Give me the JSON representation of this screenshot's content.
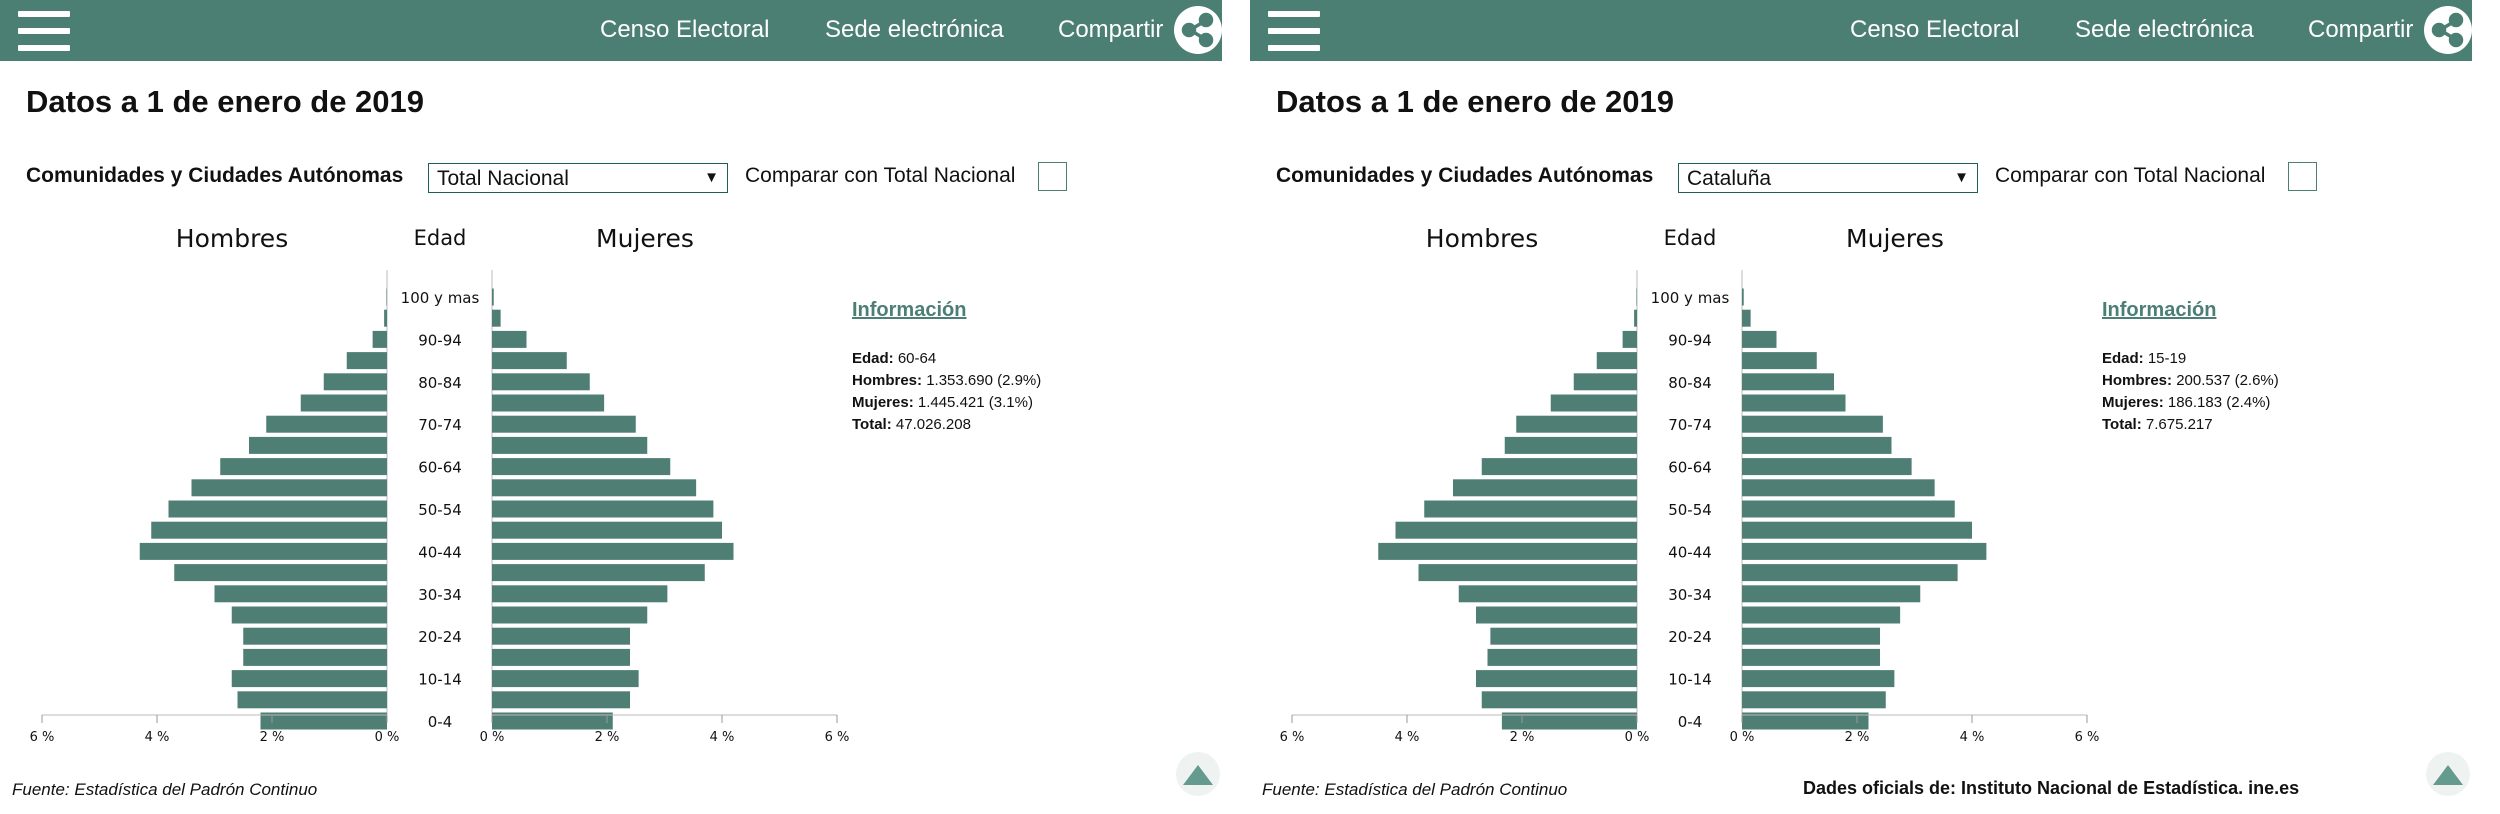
{
  "nav": {
    "censo_label": "Censo Electoral",
    "sede_label": "Sede electrónica",
    "compartir_label": "Compartir"
  },
  "colors": {
    "accent": "#4c7f74",
    "bar": "#4f7f74",
    "text": "#111111"
  },
  "icons": {
    "menu": "hamburger-icon",
    "share": "share-icon",
    "scroll_top": "up-triangle-icon"
  },
  "panels": [
    {
      "title": "Datos a 1 de enero de 2019",
      "filter_label": "Comunidades y Ciudades Autónomas",
      "selected_region": "Total Nacional",
      "compare_label": "Comparar con Total Nacional",
      "compare_checked": false,
      "info": {
        "title": "Información",
        "edad_label": "Edad:",
        "edad_value": "60-64",
        "hombres_label": "Hombres:",
        "hombres_value": "1.353.690 (2.9%)",
        "mujeres_label": "Mujeres:",
        "mujeres_value": "1.445.421 (3.1%)",
        "total_label": "Total:",
        "total_value": "47.026.208"
      },
      "source": "Fuente: Estadística del Padrón Continuo",
      "footer_official": ""
    },
    {
      "title": "Datos a 1 de enero de 2019",
      "filter_label": "Comunidades y Ciudades Autónomas",
      "selected_region": "Cataluña",
      "compare_label": "Comparar con Total Nacional",
      "compare_checked": false,
      "info": {
        "title": "Información",
        "edad_label": "Edad:",
        "edad_value": "15-19",
        "hombres_label": "Hombres:",
        "hombres_value": "200.537 (2.6%)",
        "mujeres_label": "Mujeres:",
        "mujeres_value": "186.183 (2.4%)",
        "total_label": "Total:",
        "total_value": "7.675.217"
      },
      "source": "Fuente: Estadística del Padrón Continuo",
      "footer_official": "Dades oficials de: Instituto Nacional de Estadística. ine.es"
    }
  ],
  "chart_data": [
    {
      "type": "bar",
      "orientation": "horizontal-pyramid",
      "region": "Total Nacional",
      "left_title": "Hombres",
      "center_title": "Edad",
      "right_title": "Mujeres",
      "age_groups": [
        "0-4",
        "5-9",
        "10-14",
        "15-19",
        "20-24",
        "25-29",
        "30-34",
        "35-39",
        "40-44",
        "45-49",
        "50-54",
        "55-59",
        "60-64",
        "65-69",
        "70-74",
        "75-79",
        "80-84",
        "85-89",
        "90-94",
        "95-99",
        "100 y mas"
      ],
      "age_tick_labels": [
        "0-4",
        "10-14",
        "20-24",
        "30-34",
        "40-44",
        "50-54",
        "60-64",
        "70-74",
        "80-84",
        "90-94",
        "100 y mas"
      ],
      "series": [
        {
          "name": "Hombres",
          "unit": "%",
          "values": [
            2.2,
            2.6,
            2.7,
            2.5,
            2.5,
            2.7,
            3.0,
            3.7,
            4.3,
            4.1,
            3.8,
            3.4,
            2.9,
            2.4,
            2.1,
            1.5,
            1.1,
            0.7,
            0.25,
            0.05,
            0.01
          ]
        },
        {
          "name": "Mujeres",
          "unit": "%",
          "values": [
            2.1,
            2.4,
            2.55,
            2.4,
            2.4,
            2.7,
            3.05,
            3.7,
            4.2,
            4.0,
            3.85,
            3.55,
            3.1,
            2.7,
            2.5,
            1.95,
            1.7,
            1.3,
            0.6,
            0.15,
            0.03
          ]
        }
      ],
      "x_ticks": [
        "6 %",
        "4 %",
        "2 %",
        "0 %"
      ],
      "x_ticks_right": [
        "0 %",
        "2 %",
        "4 %",
        "6 %"
      ],
      "xlim": [
        0,
        6
      ]
    },
    {
      "type": "bar",
      "orientation": "horizontal-pyramid",
      "region": "Cataluña",
      "left_title": "Hombres",
      "center_title": "Edad",
      "right_title": "Mujeres",
      "age_groups": [
        "0-4",
        "5-9",
        "10-14",
        "15-19",
        "20-24",
        "25-29",
        "30-34",
        "35-39",
        "40-44",
        "45-49",
        "50-54",
        "55-59",
        "60-64",
        "65-69",
        "70-74",
        "75-79",
        "80-84",
        "85-89",
        "90-94",
        "95-99",
        "100 y mas"
      ],
      "age_tick_labels": [
        "0-4",
        "10-14",
        "20-24",
        "30-34",
        "40-44",
        "50-54",
        "60-64",
        "70-74",
        "80-84",
        "90-94",
        "100 y mas"
      ],
      "series": [
        {
          "name": "Hombres",
          "unit": "%",
          "values": [
            2.35,
            2.7,
            2.8,
            2.6,
            2.55,
            2.8,
            3.1,
            3.8,
            4.5,
            4.2,
            3.7,
            3.2,
            2.7,
            2.3,
            2.1,
            1.5,
            1.1,
            0.7,
            0.25,
            0.05,
            0.01
          ]
        },
        {
          "name": "Mujeres",
          "unit": "%",
          "values": [
            2.2,
            2.5,
            2.65,
            2.4,
            2.4,
            2.75,
            3.1,
            3.75,
            4.25,
            4.0,
            3.7,
            3.35,
            2.95,
            2.6,
            2.45,
            1.8,
            1.6,
            1.3,
            0.6,
            0.15,
            0.03
          ]
        }
      ],
      "x_ticks": [
        "6 %",
        "4 %",
        "2 %",
        "0 %"
      ],
      "x_ticks_right": [
        "0 %",
        "2 %",
        "4 %",
        "6 %"
      ],
      "xlim": [
        0,
        6
      ]
    }
  ]
}
